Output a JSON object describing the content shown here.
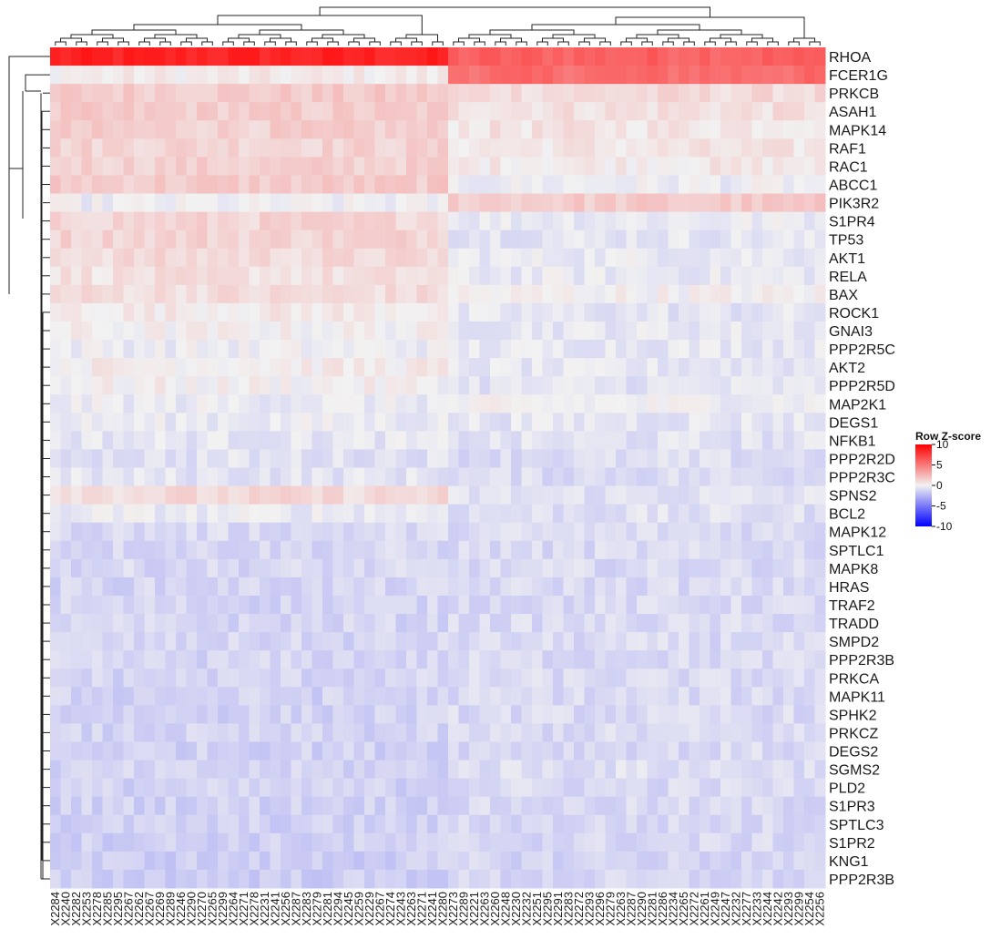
{
  "chart_data": {
    "type": "heatmap",
    "title": "",
    "xlabel": "",
    "ylabel": "",
    "rows": [
      "RHOA",
      "FCER1G",
      "PRKCB",
      "ASAH1",
      "MAPK14",
      "RAF1",
      "RAC1",
      "ABCC1",
      "PIK3R2",
      "S1PR4",
      "TP53",
      "AKT1",
      "RELA",
      "BAX",
      "ROCK1",
      "GNAI3",
      "PPP2R5C",
      "AKT2",
      "PPP2R5D",
      "MAP2K1",
      "DEGS1",
      "NFKB1",
      "PPP2R2D",
      "PPP2R3C",
      "SPNS2",
      "BCL2",
      "MAPK12",
      "SPTLC1",
      "MAPK8",
      "HRAS",
      "TRAF2",
      "TRADD",
      "SMPD2",
      "PPP2R3B",
      "PRKCA",
      "MAPK11",
      "SPHK2",
      "PRKCZ",
      "DEGS2",
      "SGMS2",
      "PLD2",
      "S1PR3",
      "SPTLC3",
      "S1PR2",
      "KNG1",
      "PPP2R3B"
    ],
    "columns": [
      "X2284",
      "X2240",
      "X2282",
      "X2253",
      "X2278",
      "X2285",
      "X2295",
      "X2267",
      "X2262",
      "X2267",
      "X2269",
      "X2289",
      "X2246",
      "X2290",
      "X2270",
      "X2265",
      "X2299",
      "X2264",
      "X2271",
      "X2278",
      "X2231",
      "X2241",
      "X2256",
      "X2287",
      "X2283",
      "X2279",
      "X2281",
      "X2294",
      "X2245",
      "X2259",
      "X2229",
      "X2267",
      "X2274",
      "X2243",
      "X2263",
      "X2271",
      "X2241",
      "X2280",
      "X2273",
      "X2289",
      "X2221",
      "X2263",
      "X2260",
      "X2248",
      "X2230",
      "X2232",
      "X2251",
      "X2295",
      "X2291",
      "X2283",
      "X2272",
      "X2293",
      "X2296",
      "X2279",
      "X2263",
      "X2287",
      "X2290",
      "X2281",
      "X2286",
      "X2234",
      "X2265",
      "X2272",
      "X2261",
      "X2249",
      "X2247",
      "X2232",
      "X2277",
      "X2233",
      "X2244",
      "X2242",
      "X2293",
      "X2299",
      "X2254",
      "X2256"
    ],
    "column_groups": {
      "left": 38,
      "right": 36
    },
    "row_profiles": {
      "RHOA": {
        "left": 8.5,
        "right": 6.0
      },
      "FCER1G": {
        "left": 0.3,
        "right": 5.5
      },
      "PRKCB": {
        "left": 1.6,
        "right": 1.0
      },
      "ASAH1": {
        "left": 1.5,
        "right": 0.8
      },
      "MAPK14": {
        "left": 1.4,
        "right": 0.6
      },
      "RAF1": {
        "left": 1.3,
        "right": 0.5
      },
      "RAC1": {
        "left": 1.4,
        "right": 0.4
      },
      "ABCC1": {
        "left": 1.6,
        "right": -0.2
      },
      "PIK3R2": {
        "left": -0.2,
        "right": 1.6
      },
      "S1PR4": {
        "left": 1.2,
        "right": -0.3
      },
      "TP53": {
        "left": 1.3,
        "right": -0.5
      },
      "AKT1": {
        "left": 1.0,
        "right": -0.3
      },
      "RELA": {
        "left": 0.7,
        "right": -0.4
      },
      "BAX": {
        "left": 0.9,
        "right": 0.1
      },
      "ROCK1": {
        "left": 0.4,
        "right": -0.6
      },
      "GNAI3": {
        "left": 0.1,
        "right": -0.4
      },
      "PPP2R5C": {
        "left": -0.2,
        "right": -0.4
      },
      "AKT2": {
        "left": 0.3,
        "right": -0.5
      },
      "PPP2R5D": {
        "left": 0.1,
        "right": -0.6
      },
      "MAP2K1": {
        "left": -0.3,
        "right": -0.1
      },
      "DEGS1": {
        "left": -0.3,
        "right": -0.5
      },
      "NFKB1": {
        "left": -0.5,
        "right": -0.7
      },
      "PPP2R2D": {
        "left": -0.7,
        "right": -0.9
      },
      "PPP2R3C": {
        "left": -0.6,
        "right": -0.9
      },
      "SPNS2": {
        "left": 1.0,
        "right": -0.7
      },
      "BCL2": {
        "left": -0.3,
        "right": -0.8
      },
      "MAPK12": {
        "left": -1.0,
        "right": -0.9
      },
      "SPTLC1": {
        "left": -1.1,
        "right": -1.0
      },
      "MAPK8": {
        "left": -1.1,
        "right": -1.0
      },
      "HRAS": {
        "left": -1.2,
        "right": -1.0
      },
      "TRAF2": {
        "left": -1.2,
        "right": -1.0
      },
      "TRADD": {
        "left": -1.2,
        "right": -1.0
      },
      "SMPD2": {
        "left": -1.2,
        "right": -1.0
      },
      "PPP2R3B": {
        "left": -1.2,
        "right": -1.0
      },
      "PRKCA": {
        "left": -1.2,
        "right": -1.0
      },
      "MAPK11": {
        "left": -1.3,
        "right": -1.0
      },
      "SPHK2": {
        "left": -1.3,
        "right": -1.0
      },
      "PRKCZ": {
        "left": -1.3,
        "right": -1.0
      },
      "DEGS2": {
        "left": -1.3,
        "right": -1.0
      },
      "SGMS2": {
        "left": -1.3,
        "right": -0.8
      },
      "PLD2": {
        "left": -1.3,
        "right": -1.0
      },
      "S1PR3": {
        "left": -1.3,
        "right": -1.1
      },
      "SPTLC3": {
        "left": -1.4,
        "right": -1.1
      },
      "S1PR2": {
        "left": -1.4,
        "right": -1.1
      },
      "KNG1": {
        "left": -1.5,
        "right": -1.2
      },
      "PPP2R3B_2": {
        "left": -1.5,
        "right": -1.2
      }
    },
    "color_scale": {
      "min": -10,
      "mid": 0,
      "max": 10,
      "low": "#0000ff",
      "mid_color": "#f2f2f2",
      "high": "#ff0000"
    },
    "legend": {
      "title": "Row Z-score",
      "ticks": [
        "10",
        "5",
        "0",
        "-5",
        "-10"
      ],
      "position": "right"
    },
    "grid": false
  }
}
